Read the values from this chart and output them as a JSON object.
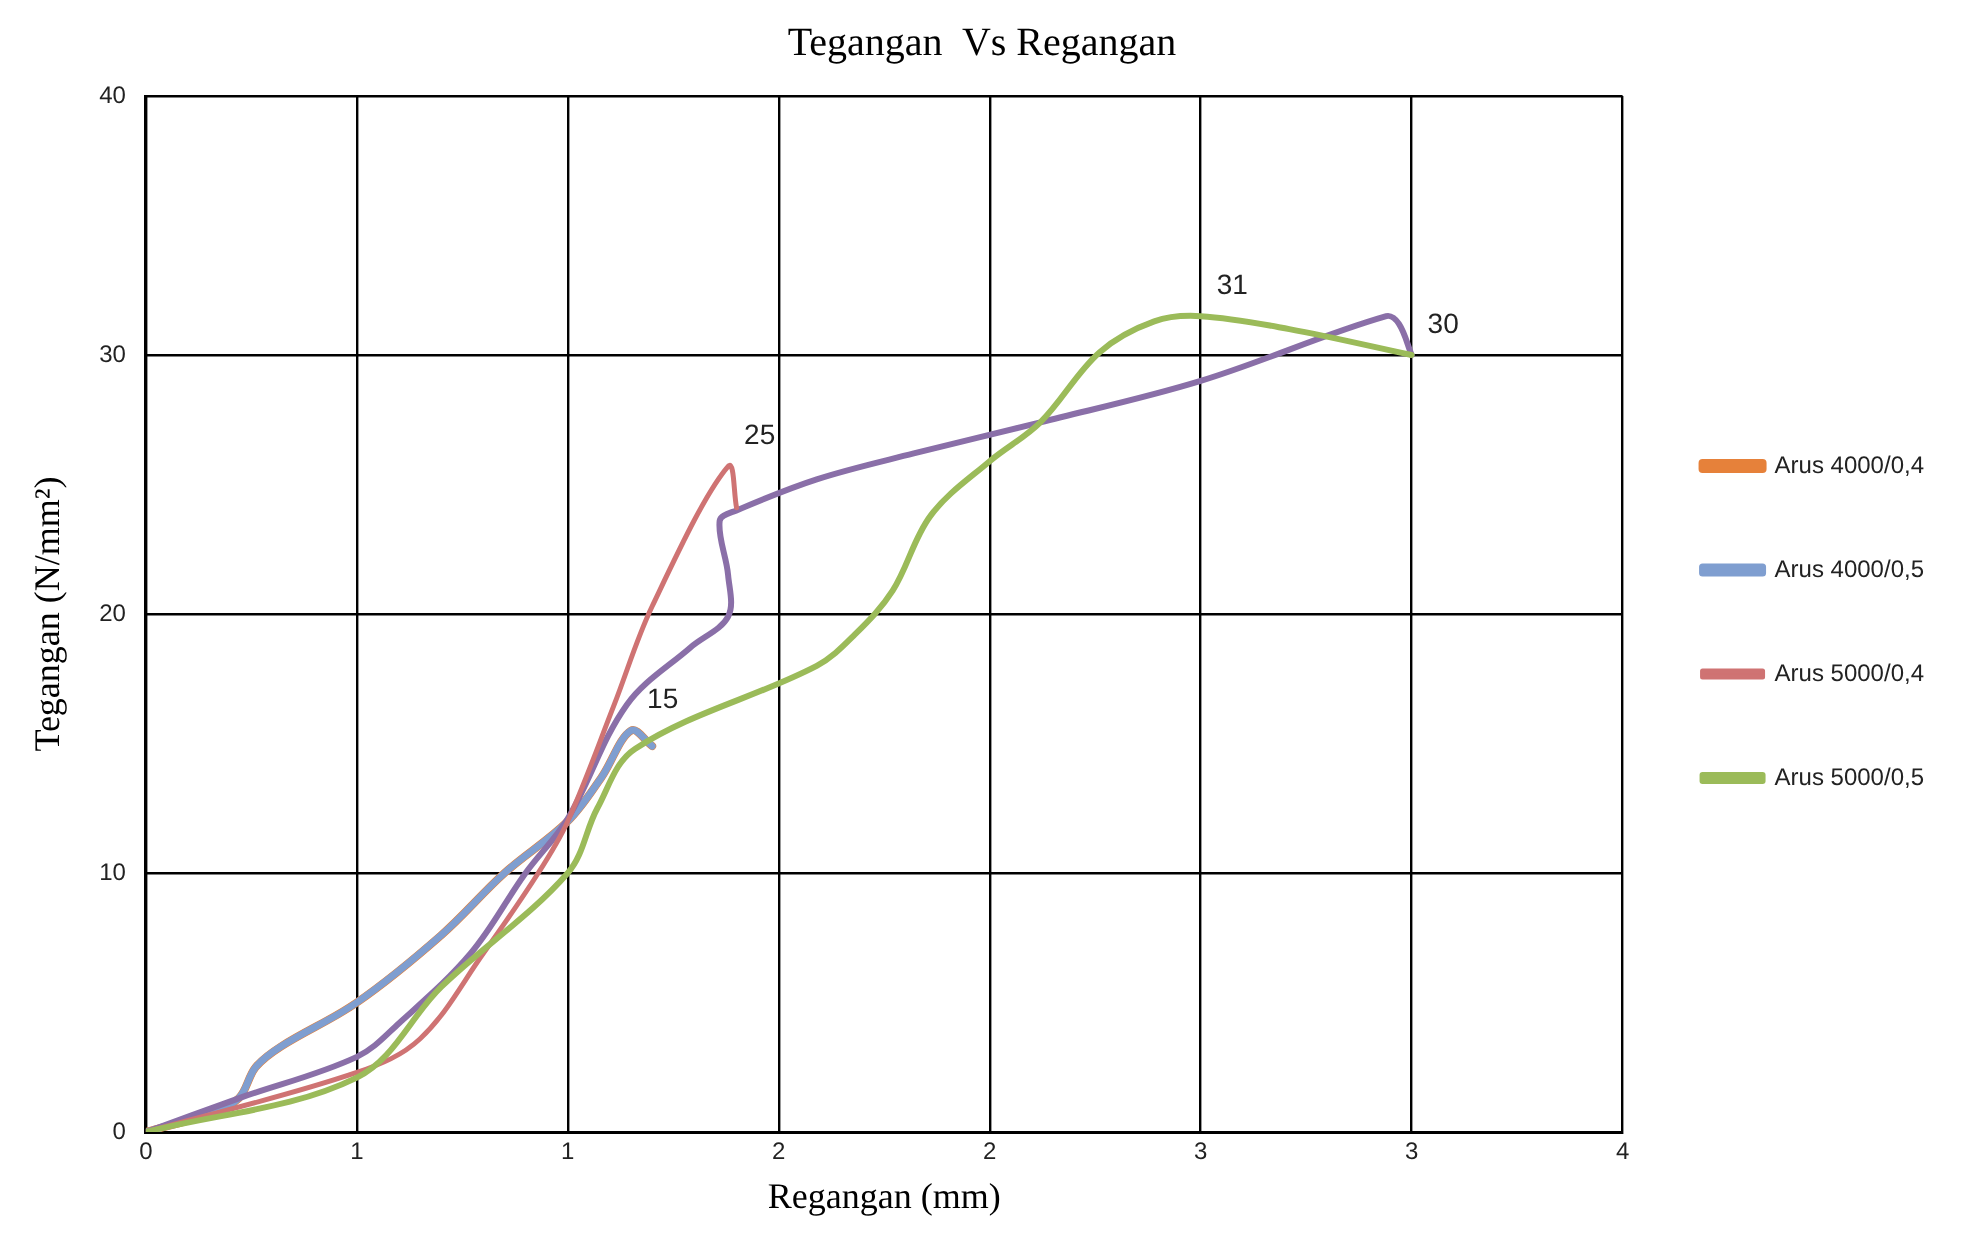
{
  "chart_data": {
    "type": "line",
    "title": "Tegangan  Vs Regangan",
    "xlabel": "Regangan (mm)",
    "ylabel": "Tegangan (N/mm²)",
    "xlim": [
      0,
      3.5
    ],
    "xticks": [
      0,
      {
        "value": 0.5,
        "label": "1"
      },
      {
        "value": 1,
        "label": "1"
      },
      {
        "value": 1.5,
        "label": "2"
      },
      {
        "value": 2,
        "label": "2"
      },
      {
        "value": 2.5,
        "label": "3"
      },
      {
        "value": 3,
        "label": "3"
      },
      {
        "value": 3.5,
        "label": "4"
      }
    ],
    "ylim": [
      0,
      40
    ],
    "yticks": [
      0,
      10,
      20,
      30,
      40
    ],
    "grid": true,
    "legend": "right",
    "marker": "none",
    "line_style": "solid",
    "series": [
      {
        "name": "Arus 4000/0,4",
        "color": "#e6813a",
        "x": [
          0,
          0.15,
          0.22,
          0.26,
          0.32,
          0.5,
          0.7,
          0.85,
          1.0,
          1.08,
          1.15,
          1.2
        ],
        "values": [
          0,
          0.7,
          1.3,
          2.5,
          3.3,
          5,
          7.6,
          10,
          12,
          13.7,
          15.5,
          14.9
        ]
      },
      {
        "name": "Arus 4000/0,5",
        "color": "#7f9ed0",
        "x": [
          0,
          0.15,
          0.22,
          0.26,
          0.32,
          0.5,
          0.7,
          0.85,
          1.0,
          1.08,
          1.15,
          1.2
        ],
        "values": [
          0,
          0.7,
          1.3,
          2.5,
          3.3,
          5,
          7.6,
          10,
          12,
          13.7,
          15.5,
          14.9
        ]
      },
      {
        "color": "#8a6fa8",
        "x": [
          0,
          0.22,
          0.5,
          0.6,
          0.77,
          0.9,
          1.0,
          1.14,
          1.29,
          1.38,
          1.38,
          1.36,
          1.4,
          1.59,
          1.82,
          2.12,
          2.5,
          2.94,
          2.97,
          3.0
        ],
        "values": [
          0,
          1.3,
          2.9,
          4.2,
          6.9,
          10,
          12.1,
          16.5,
          18.7,
          19.9,
          21.5,
          23.6,
          24,
          25.2,
          26.2,
          27.4,
          29,
          31.5,
          31.2,
          30
        ]
      },
      {
        "name": "Arus 5000/0,4",
        "color": "#cf7373",
        "x": [
          0,
          0.5,
          0.65,
          0.8,
          0.93,
          1.0,
          1.11,
          1.2,
          1.38,
          1.4
        ],
        "values": [
          0,
          2.3,
          3.6,
          6.9,
          10,
          12,
          16.5,
          20.3,
          25.7,
          24.1
        ]
      },
      {
        "name": "Arus 5000/0,5",
        "color": "#9bbb59",
        "x": [
          0,
          0.5,
          0.7,
          1.0,
          1.07,
          1.16,
          1.59,
          1.68,
          1.77,
          1.86,
          2.0,
          2.12,
          2.26,
          2.39,
          2.5,
          2.71,
          3.0
        ],
        "values": [
          0,
          2.1,
          5.6,
          10,
          12.5,
          14.8,
          18,
          19.2,
          20.9,
          23.8,
          25.9,
          27.4,
          30.1,
          31.3,
          31.5,
          31,
          30
        ]
      }
    ],
    "annotations": [
      {
        "text": "15",
        "x": 1.15,
        "y": 15.5
      },
      {
        "text": "25",
        "x": 1.38,
        "y": 25.7
      },
      {
        "text": "31",
        "x": 2.5,
        "y": 31.5
      },
      {
        "text": "30",
        "x": 3.0,
        "y": 30
      }
    ]
  }
}
